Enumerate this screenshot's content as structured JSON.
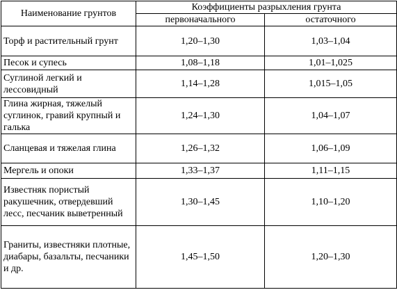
{
  "table": {
    "header": {
      "name": "Наименование грунтов",
      "group": "Коэффициенты разрыхления грунта",
      "sub": [
        "первоначального",
        "остаточного"
      ]
    },
    "rows": [
      [
        "Торф и растительный грунт",
        "1,20–1,30",
        "1,03–1,04"
      ],
      [
        "Песок и супесь",
        "1,08–1,18",
        "1,01–1,025"
      ],
      [
        "Суглиной легкий и лессовидный",
        "1,14–1,28",
        "1,015–1,05"
      ],
      [
        "Глина жирная, тяжелый суглинок, гравий крупный и галька",
        "1,24–1,30",
        "1,04–1,07"
      ],
      [
        "Сланцевая и тяжелая глина",
        "1,26–1,32",
        "1,06–1,09"
      ],
      [
        "Мергель и опоки",
        "1,33–1,37",
        "1,11–1,15"
      ],
      [
        "Известняк пористый ракушечник, отвердевший лесс, песчаник выветренный",
        "1,30–1,45",
        "1,10–1,20"
      ],
      [
        "Граниты, известняки плотные, диабары, базальты, песчаники и др.",
        "1,45–1,50",
        "1,20–1,30"
      ]
    ]
  }
}
